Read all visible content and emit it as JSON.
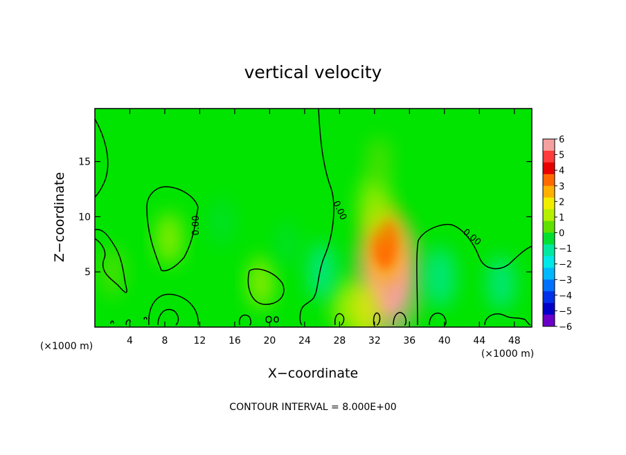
{
  "chart_data": {
    "type": "heatmap",
    "title": "vertical velocity",
    "xlabel": "X−coordinate",
    "ylabel": "Z−coordinate",
    "x_unit_left": "(×1000 m)",
    "x_unit_right": "(×1000 m)",
    "xlim": [
      0,
      50
    ],
    "ylim": [
      0,
      19.8
    ],
    "x_ticks": [
      4,
      8,
      12,
      16,
      20,
      24,
      28,
      32,
      36,
      40,
      44,
      48
    ],
    "y_ticks": [
      5,
      10,
      15
    ],
    "footer": "CONTOUR INTERVAL = 8.000E+00",
    "contour_label": "0.00",
    "colorbar": {
      "range": [
        -6,
        6
      ],
      "tick_labels": [
        "6",
        "5",
        "4",
        "3",
        "2",
        "1",
        "0",
        "−1",
        "−2",
        "−3",
        "−4",
        "−5",
        "−6"
      ],
      "colors": [
        "#f5a0a0",
        "#ff3b3b",
        "#e80000",
        "#ff6a00",
        "#ffb000",
        "#f2ee00",
        "#b4f000",
        "#5ee000",
        "#00e030",
        "#00e8a0",
        "#00e8e8",
        "#00b8ff",
        "#0070ff",
        "#0030e8",
        "#0000c8",
        "#6a00c8"
      ]
    },
    "features": [
      {
        "x": 33.6,
        "z": 4.5,
        "value": 5.5
      },
      {
        "x": 33.2,
        "z": 7.5,
        "value": 3.0
      },
      {
        "x": 32.0,
        "z": 11.0,
        "value": 1.5
      },
      {
        "x": 32.5,
        "z": 15.0,
        "value": 0.6
      },
      {
        "x": 8.5,
        "z": 8.0,
        "value": 0.8
      },
      {
        "x": 19.0,
        "z": 4.0,
        "value": 0.8
      },
      {
        "x": 28.5,
        "z": 2.0,
        "value": 0.8
      },
      {
        "x": 30.8,
        "z": 1.2,
        "value": 1.6
      },
      {
        "x": 26.0,
        "z": 5.0,
        "value": -1.2
      },
      {
        "x": 39.5,
        "z": 4.5,
        "value": -1.4
      },
      {
        "x": 46.5,
        "z": 4.0,
        "value": -1.0
      },
      {
        "x": 2.0,
        "z": 5.0,
        "value": 0.7
      },
      {
        "x": 14.5,
        "z": 9.5,
        "value": -0.6
      },
      {
        "x": 22.0,
        "z": 7.5,
        "value": -0.5
      }
    ]
  }
}
